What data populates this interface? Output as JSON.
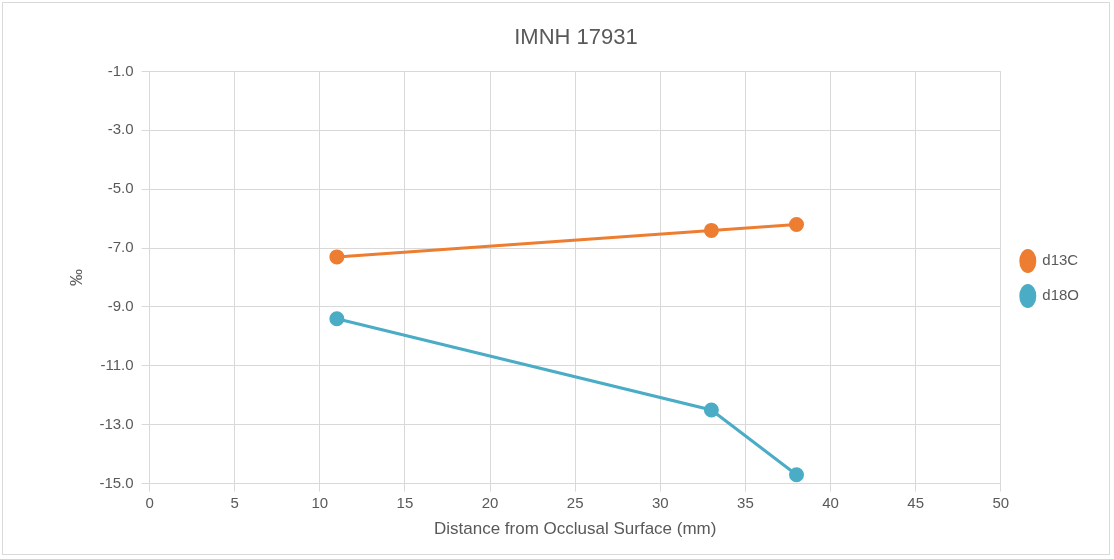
{
  "chart_data": {
    "type": "line",
    "title": "IMNH 17931",
    "x_label": "Distance from Occlusal Surface (mm)",
    "y_label": "‰",
    "x": [
      11,
      33,
      38
    ],
    "series": [
      {
        "name": "d13C",
        "color": "#ed7d31",
        "marker": "circle",
        "values": [
          -7.3,
          -6.4,
          -6.2
        ]
      },
      {
        "name": "d18O",
        "color": "#4bacc6",
        "marker": "circle",
        "values": [
          -9.4,
          -12.5,
          -14.7
        ]
      }
    ],
    "xlim": [
      0,
      50
    ],
    "xticks": [
      0,
      5,
      10,
      15,
      20,
      25,
      30,
      35,
      40,
      45,
      50
    ],
    "ylim": [
      -15,
      -1
    ],
    "yticks": [
      {
        "value": -15,
        "label": "-15.0"
      },
      {
        "value": -13,
        "label": "-13.0"
      },
      {
        "value": -11,
        "label": "-11.0"
      },
      {
        "value": -9,
        "label": "-9.0"
      },
      {
        "value": -7,
        "label": "-7.0"
      },
      {
        "value": -5,
        "label": "-5.0"
      },
      {
        "value": -3,
        "label": "-3.0"
      },
      {
        "value": -1,
        "label": "-1.0"
      }
    ],
    "grid": true,
    "legend": "right"
  }
}
